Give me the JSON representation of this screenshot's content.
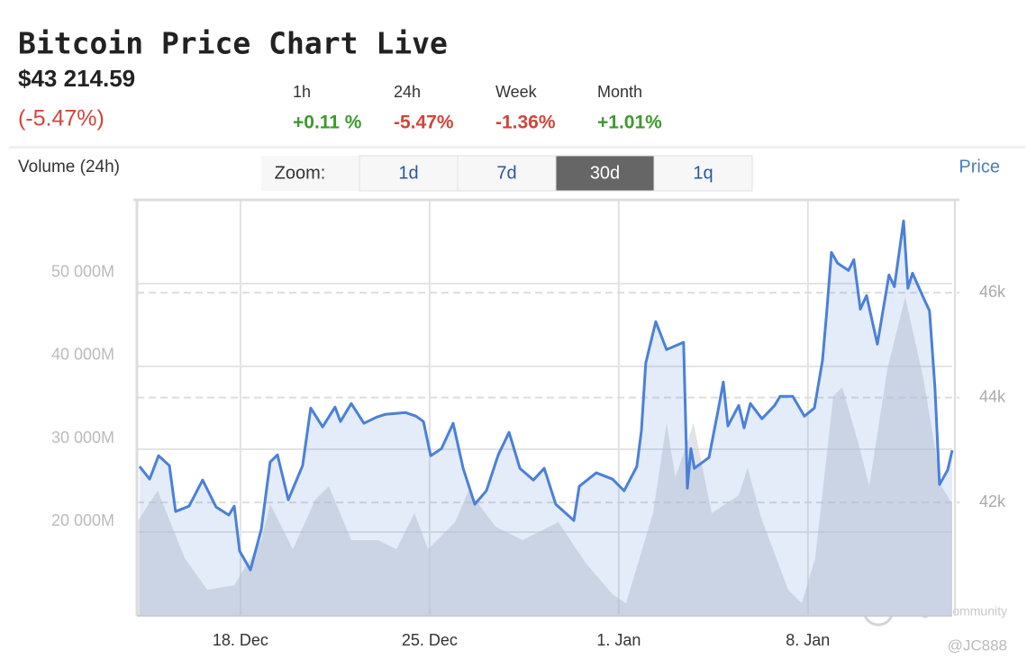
{
  "header": {
    "title": "Bitcoin Price Chart Live",
    "price": "$43 214.59",
    "change": "(-5.47%)",
    "change_color": "#d0453a",
    "periods": [
      {
        "label": "1h",
        "value": "+0.11 %",
        "color": "#3c9a2e"
      },
      {
        "label": "24h",
        "value": "-5.47%",
        "color": "#d0453a"
      },
      {
        "label": "Week",
        "value": "-1.36%",
        "color": "#d0453a"
      },
      {
        "label": "Month",
        "value": "+1.01%",
        "color": "#3c9a2e"
      }
    ]
  },
  "zoom": {
    "label": "Zoom:",
    "options": [
      "1d",
      "7d",
      "30d",
      "1q"
    ],
    "active": 2
  },
  "watermark": {
    "brand": "Tiger Community",
    "user": "@JC888"
  },
  "chart_data": {
    "type": "line",
    "xlim": [
      14.17,
      44.34
    ],
    "xticks": [
      {
        "value": 18,
        "label": "18. Dec"
      },
      {
        "value": 25,
        "label": "25. Dec"
      },
      {
        "value": 32,
        "label": "1. Jan"
      },
      {
        "value": 39,
        "label": "8. Jan"
      }
    ],
    "ylim": [
      9900,
      60100
    ],
    "yticks": [
      {
        "value": 20000,
        "label": "20 000M"
      },
      {
        "value": 30000,
        "label": "30 000M"
      },
      {
        "value": 40000,
        "label": "40 000M"
      },
      {
        "value": 50000,
        "label": "50 000M"
      }
    ],
    "y2lim": [
      39840,
      47770
    ],
    "y2ticks": [
      {
        "value": 42000,
        "label": "42k"
      },
      {
        "value": 44000,
        "label": "44k"
      },
      {
        "value": 46000,
        "label": "46k"
      }
    ],
    "grid": true,
    "series": [
      {
        "name": "Volume (24h)",
        "color": "#c8ccd4",
        "x": [
          14.17,
          14.94,
          15.94,
          16.77,
          17.77,
          18.77,
          19.1,
          19.94,
          20.77,
          21.27,
          22.1,
          23.1,
          23.77,
          24.44,
          24.94,
          25.94,
          26.44,
          27.44,
          28.44,
          29.77,
          30.77,
          31.77,
          32.27,
          32.77,
          33.27,
          33.77,
          34.1,
          34.77,
          35.44,
          36.44,
          36.77,
          37.27,
          38.27,
          38.77,
          39.27,
          39.94,
          40.27,
          40.94,
          41.27,
          41.94,
          42.6,
          43.27,
          43.94,
          44.34
        ],
        "values": [
          21196,
          25000,
          16848,
          13043,
          13587,
          19022,
          23370,
          17935,
          23913,
          25544,
          19022,
          19022,
          17935,
          22283,
          17935,
          21196,
          25000,
          20652,
          19022,
          21196,
          16304,
          12500,
          11413,
          16848,
          22283,
          33152,
          26630,
          33152,
          22283,
          24457,
          27717,
          21739,
          13043,
          11413,
          16848,
          36413,
          37500,
          29891,
          25544,
          39674,
          48370,
          38587,
          25544,
          23370
        ]
      },
      {
        "name": "Price",
        "color": "#4a80d9",
        "axis": "y2",
        "x": [
          14.27,
          14.64,
          14.97,
          15.37,
          15.6,
          16.1,
          16.6,
          17.1,
          17.57,
          17.77,
          17.97,
          18.37,
          18.77,
          19.1,
          19.37,
          19.77,
          20.3,
          20.6,
          21.04,
          21.5,
          21.7,
          22.1,
          22.57,
          23.04,
          23.37,
          24.1,
          24.5,
          24.77,
          25.04,
          25.44,
          25.87,
          26.24,
          26.67,
          27.1,
          27.54,
          27.94,
          28.34,
          28.84,
          29.24,
          29.67,
          30.34,
          30.54,
          31.17,
          31.77,
          32.2,
          32.67,
          32.84,
          33.0,
          33.37,
          33.77,
          34.4,
          34.54,
          34.67,
          34.8,
          35.34,
          35.7,
          35.87,
          36.04,
          36.44,
          36.64,
          36.87,
          37.3,
          37.77,
          37.97,
          38.44,
          38.87,
          39.24,
          39.54,
          39.7,
          39.87,
          40.1,
          40.5,
          40.7,
          40.94,
          41.17,
          41.57,
          42.0,
          42.2,
          42.54,
          42.7,
          42.87,
          43.27,
          43.5,
          43.7,
          43.87,
          44.17,
          44.34
        ],
        "values": [
          42686,
          42446,
          42892,
          42703,
          41828,
          41931,
          42429,
          41914,
          41760,
          41931,
          41074,
          40714,
          41486,
          42772,
          42909,
          42051,
          42703,
          43801,
          43441,
          43818,
          43544,
          43887,
          43509,
          43629,
          43681,
          43715,
          43646,
          43544,
          42892,
          43029,
          43509,
          42652,
          41966,
          42223,
          42909,
          43338,
          42652,
          42429,
          42652,
          41966,
          41657,
          42309,
          42566,
          42446,
          42223,
          42686,
          43372,
          44658,
          45447,
          44916,
          45053,
          42274,
          43029,
          42652,
          42858,
          43818,
          44298,
          43458,
          43852,
          43423,
          43887,
          43595,
          43852,
          44024,
          44024,
          43646,
          43801,
          44710,
          45653,
          46768,
          46562,
          46425,
          46631,
          45687,
          45945,
          45018,
          46339,
          46116,
          47368,
          46082,
          46373,
          45910,
          45653,
          44195,
          42343,
          42617,
          42995
        ]
      }
    ]
  }
}
